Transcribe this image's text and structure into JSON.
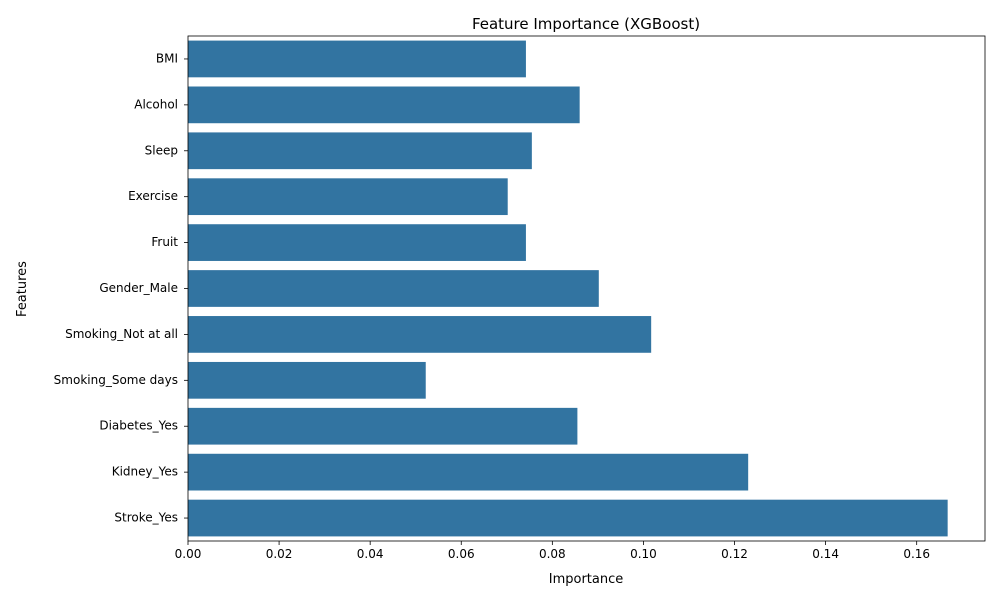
{
  "chart_data": {
    "type": "bar",
    "orientation": "horizontal",
    "title": "Feature Importance (XGBoost)",
    "xlabel": "Importance",
    "ylabel": "Features",
    "categories": [
      "BMI",
      "Alcohol",
      "Sleep",
      "Exercise",
      "Fruit",
      "Gender_Male",
      "Smoking_Not at all",
      "Smoking_Some days",
      "Diabetes_Yes",
      "Kidney_Yes",
      "Stroke_Yes"
    ],
    "values": [
      0.0742,
      0.086,
      0.0755,
      0.0702,
      0.0742,
      0.0902,
      0.1017,
      0.0522,
      0.0855,
      0.123,
      0.1668
    ],
    "xlim": [
      0,
      0.175
    ],
    "xticks": [
      0.0,
      0.02,
      0.04,
      0.06,
      0.08,
      0.1,
      0.12,
      0.14,
      0.16
    ],
    "xtick_labels": [
      "0.00",
      "0.02",
      "0.04",
      "0.06",
      "0.08",
      "0.10",
      "0.12",
      "0.14",
      "0.16"
    ],
    "grid": false,
    "colors": {
      "bar": "#3274a1"
    }
  }
}
